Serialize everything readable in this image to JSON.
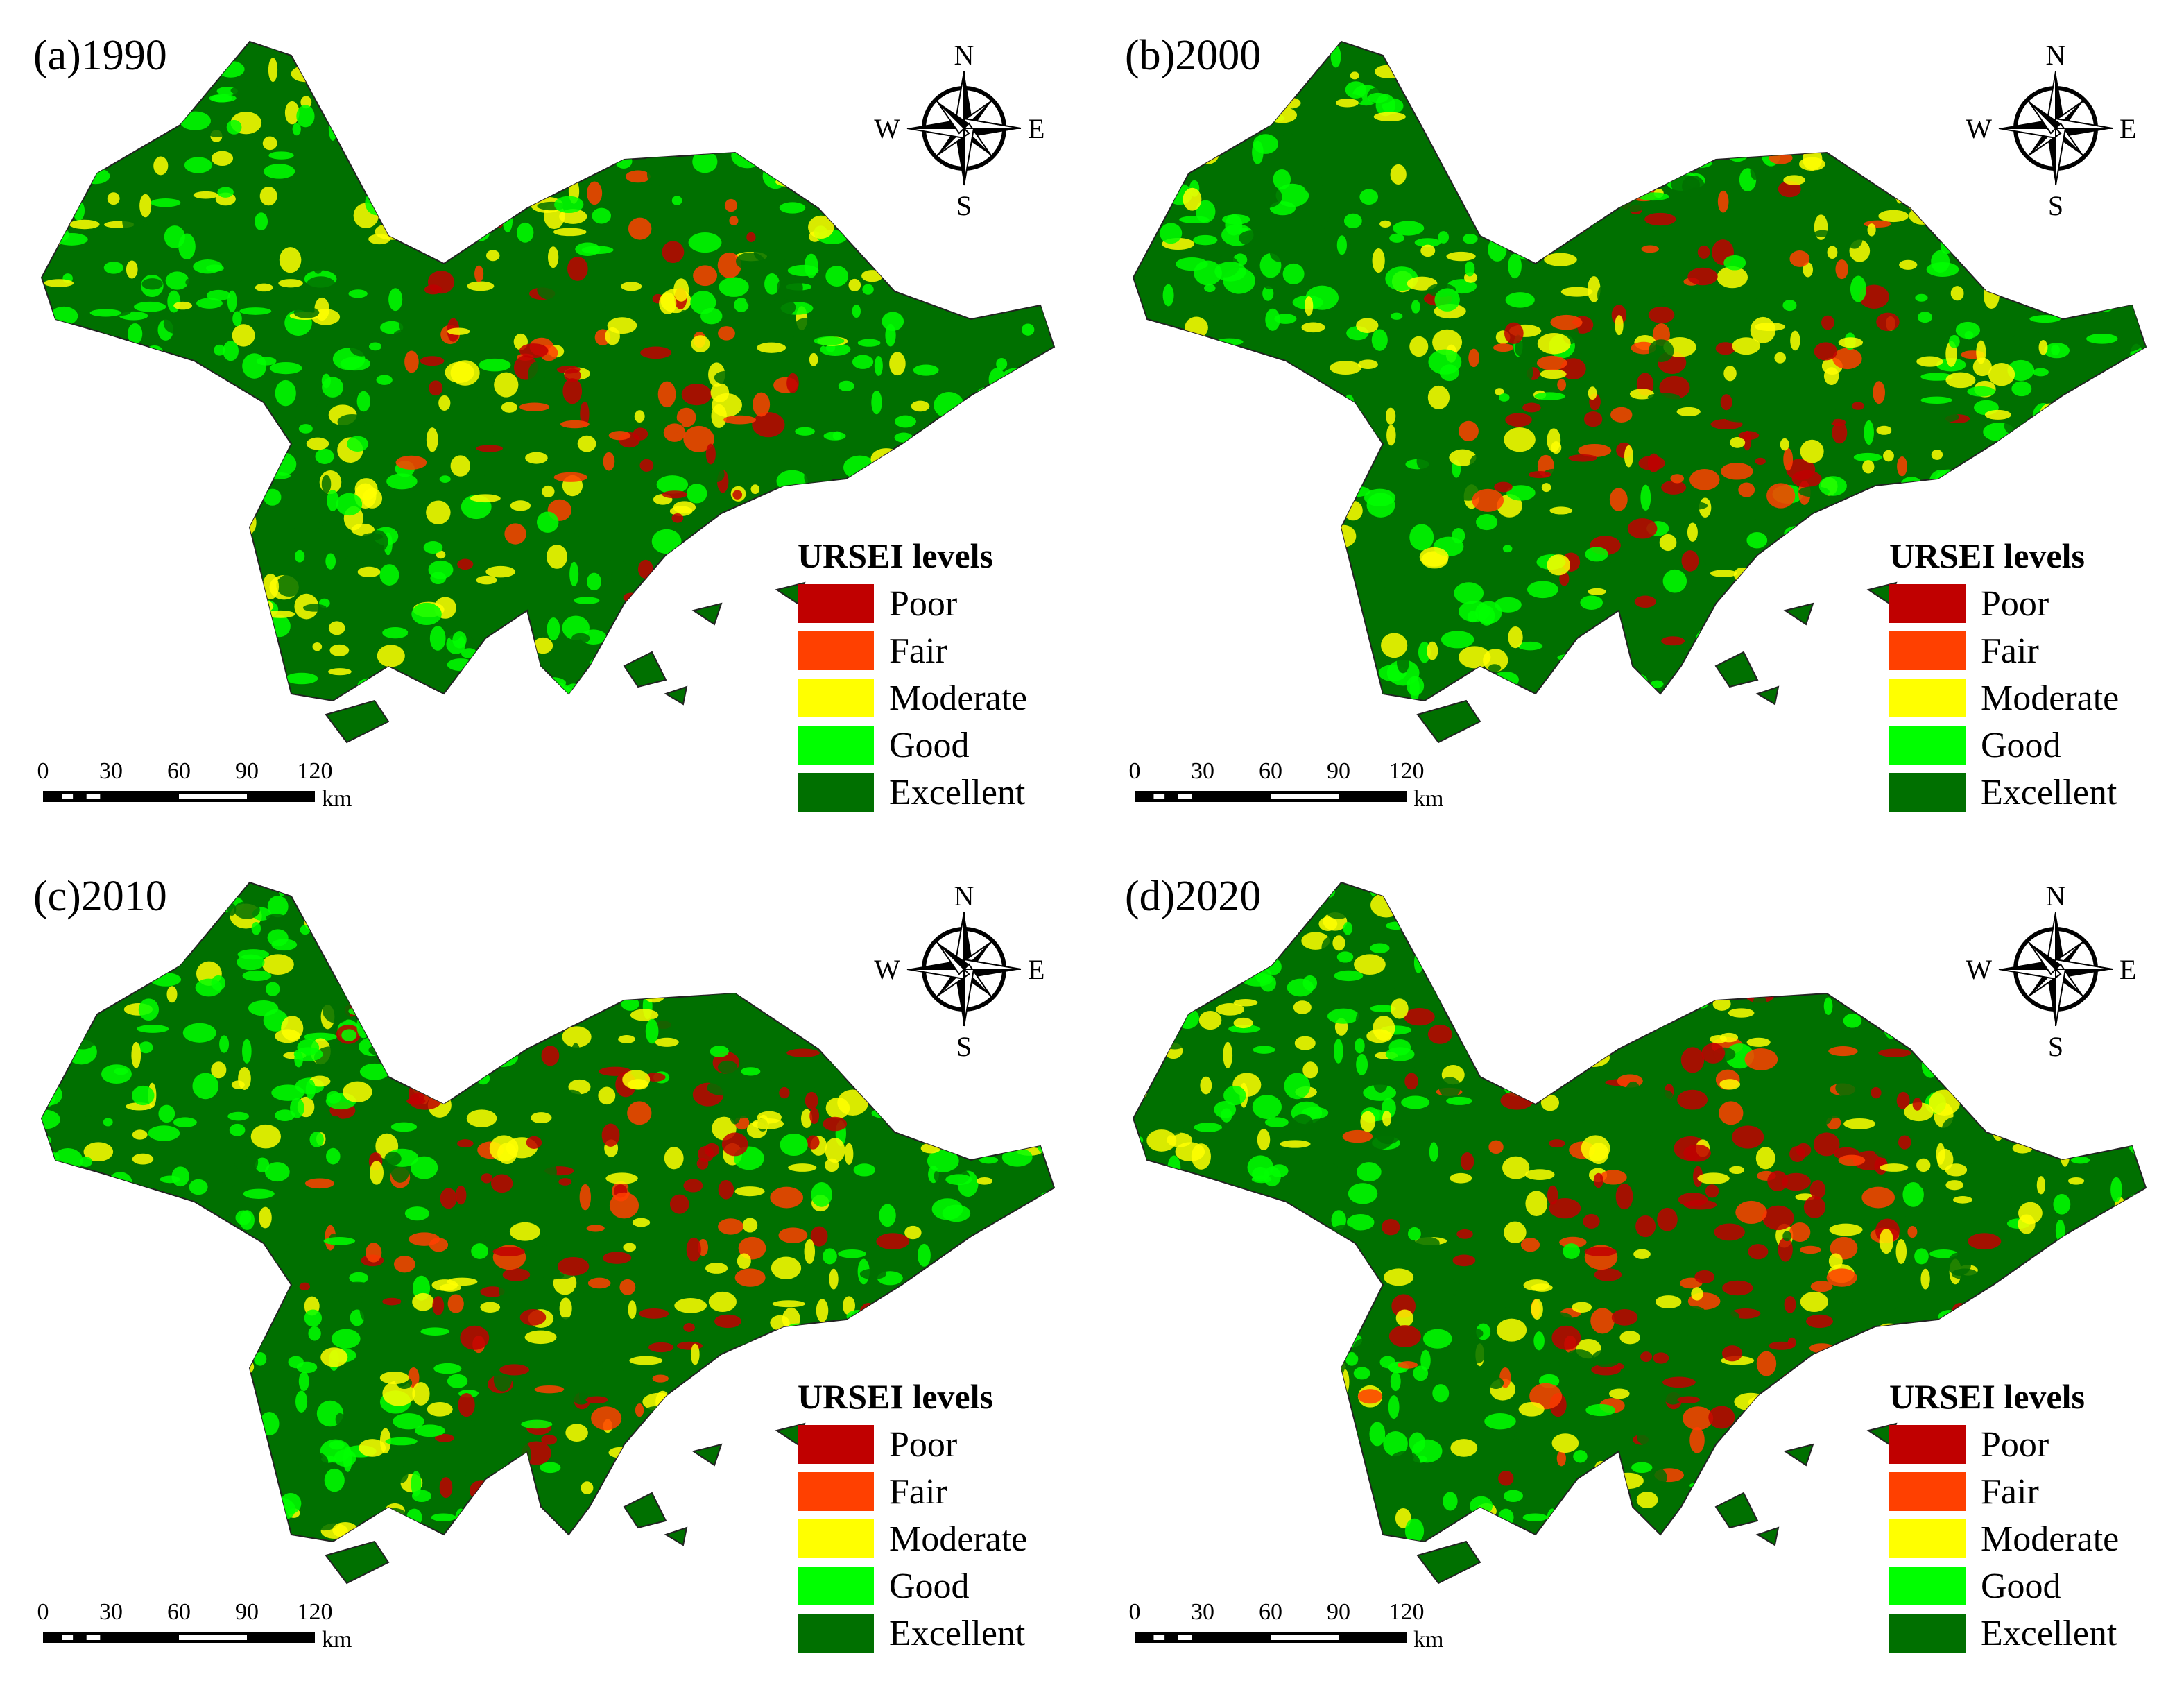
{
  "panels": [
    {
      "title": "(a)1990",
      "compass": {
        "n": "N",
        "e": "E",
        "s": "S",
        "w": "W"
      },
      "legend": {
        "title": "URSEI levels",
        "items": [
          {
            "label": "Poor",
            "color": "#c00000"
          },
          {
            "label": "Fair",
            "color": "#ff4000"
          },
          {
            "label": "Moderate",
            "color": "#ffff00"
          },
          {
            "label": "Good",
            "color": "#00ff00"
          },
          {
            "label": "Excellent",
            "color": "#007000"
          }
        ]
      },
      "scale": {
        "ticks": [
          0,
          30,
          60,
          90,
          120
        ],
        "unit": "km"
      }
    },
    {
      "title": "(b)2000",
      "compass": {
        "n": "N",
        "e": "E",
        "s": "S",
        "w": "W"
      },
      "legend": {
        "title": "URSEI levels",
        "items": [
          {
            "label": "Poor",
            "color": "#c00000"
          },
          {
            "label": "Fair",
            "color": "#ff4000"
          },
          {
            "label": "Moderate",
            "color": "#ffff00"
          },
          {
            "label": "Good",
            "color": "#00ff00"
          },
          {
            "label": "Excellent",
            "color": "#007000"
          }
        ]
      },
      "scale": {
        "ticks": [
          0,
          30,
          60,
          90,
          120
        ],
        "unit": "km"
      }
    },
    {
      "title": "(c)2010",
      "compass": {
        "n": "N",
        "e": "E",
        "s": "S",
        "w": "W"
      },
      "legend": {
        "title": "URSEI levels",
        "items": [
          {
            "label": "Poor",
            "color": "#c00000"
          },
          {
            "label": "Fair",
            "color": "#ff4000"
          },
          {
            "label": "Moderate",
            "color": "#ffff00"
          },
          {
            "label": "Good",
            "color": "#00ff00"
          },
          {
            "label": "Excellent",
            "color": "#007000"
          }
        ]
      },
      "scale": {
        "ticks": [
          0,
          30,
          60,
          90,
          120
        ],
        "unit": "km"
      }
    },
    {
      "title": "(d)2020",
      "compass": {
        "n": "N",
        "e": "E",
        "s": "S",
        "w": "W"
      },
      "legend": {
        "title": "URSEI levels",
        "items": [
          {
            "label": "Poor",
            "color": "#c00000"
          },
          {
            "label": "Fair",
            "color": "#ff4000"
          },
          {
            "label": "Moderate",
            "color": "#ffff00"
          },
          {
            "label": "Good",
            "color": "#00ff00"
          },
          {
            "label": "Excellent",
            "color": "#007000"
          }
        ]
      },
      "scale": {
        "ticks": [
          0,
          30,
          60,
          90,
          120
        ],
        "unit": "km"
      }
    }
  ]
}
